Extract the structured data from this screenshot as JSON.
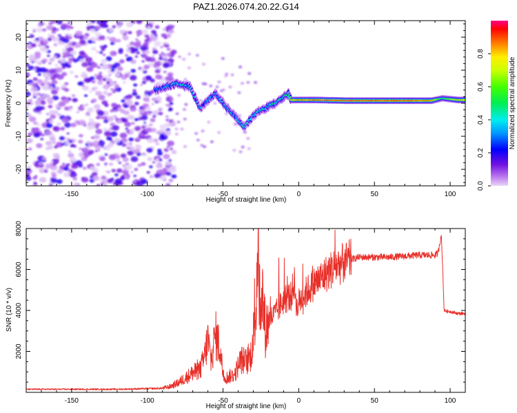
{
  "chart_data": [
    {
      "type": "heatmap",
      "title": "PAZ1.2026.074.20.22.G14",
      "xlabel": "Height of straight line (km)",
      "ylabel": "Frequency (Hz)",
      "xlim": [
        -180,
        110
      ],
      "ylim": [
        -25,
        25
      ],
      "x_ticks": [
        -150,
        -100,
        -50,
        0,
        50,
        100
      ],
      "y_ticks": [
        -20,
        -10,
        0,
        10,
        20
      ],
      "colorbar": {
        "label": "Normalized spectral amplitude",
        "range": [
          0,
          1
        ],
        "ticks": [
          0.0,
          0.2,
          0.4,
          0.6,
          0.8
        ],
        "tick_labels": [
          "0.0",
          "0.2",
          "0.4",
          "0.6",
          "0.8"
        ]
      },
      "noise_region_x": [
        -180,
        -88
      ],
      "ridge": [
        {
          "x": -95,
          "y": 4,
          "a": 0.3
        },
        {
          "x": -88,
          "y": 5,
          "a": 0.4
        },
        {
          "x": -80,
          "y": 6,
          "a": 0.45
        },
        {
          "x": -72,
          "y": 5,
          "a": 0.4
        },
        {
          "x": -65,
          "y": -1.5,
          "a": 0.35
        },
        {
          "x": -55,
          "y": 3,
          "a": 0.4
        },
        {
          "x": -48,
          "y": -1,
          "a": 0.4
        },
        {
          "x": -42,
          "y": -4,
          "a": 0.4
        },
        {
          "x": -36,
          "y": -7,
          "a": 0.45
        },
        {
          "x": -28,
          "y": -3,
          "a": 0.4
        },
        {
          "x": -20,
          "y": -1,
          "a": 0.45
        },
        {
          "x": -12,
          "y": 1,
          "a": 0.5
        },
        {
          "x": -7,
          "y": 3,
          "a": 0.45
        },
        {
          "x": -5,
          "y": 1,
          "a": 0.85
        },
        {
          "x": 10,
          "y": 1,
          "a": 0.95
        },
        {
          "x": 30,
          "y": 0.8,
          "a": 1.0
        },
        {
          "x": 50,
          "y": 0.8,
          "a": 0.95
        },
        {
          "x": 70,
          "y": 0.8,
          "a": 0.95
        },
        {
          "x": 88,
          "y": 0.8,
          "a": 0.9
        },
        {
          "x": 95,
          "y": 1.5,
          "a": 0.5
        },
        {
          "x": 105,
          "y": 1,
          "a": 0.85
        },
        {
          "x": 110,
          "y": 1,
          "a": 0.85
        }
      ]
    },
    {
      "type": "line",
      "title": "",
      "xlabel": "Height of straight line (km)",
      "ylabel": "SNR (10 * v/v)",
      "xlim": [
        -180,
        110
      ],
      "ylim": [
        0,
        8000
      ],
      "x_ticks": [
        -150,
        -100,
        -50,
        0,
        50,
        100
      ],
      "y_ticks": [
        2000,
        4000,
        6000,
        8000
      ],
      "series": [
        {
          "name": "SNR",
          "color": "#e8302a",
          "points": [
            [
              -180,
              150
            ],
            [
              -150,
              150
            ],
            [
              -120,
              150
            ],
            [
              -100,
              180
            ],
            [
              -90,
              200
            ],
            [
              -85,
              280
            ],
            [
              -80,
              450
            ],
            [
              -75,
              700
            ],
            [
              -70,
              950
            ],
            [
              -65,
              1100
            ],
            [
              -62,
              1800
            ],
            [
              -60,
              2600
            ],
            [
              -58,
              1500
            ],
            [
              -55,
              2800
            ],
            [
              -52,
              2200
            ],
            [
              -50,
              900
            ],
            [
              -48,
              700
            ],
            [
              -45,
              800
            ],
            [
              -42,
              900
            ],
            [
              -40,
              1300
            ],
            [
              -38,
              1600
            ],
            [
              -35,
              1500
            ],
            [
              -32,
              1700
            ],
            [
              -30,
              2700
            ],
            [
              -28,
              4500
            ],
            [
              -27,
              8200
            ],
            [
              -26,
              5000
            ],
            [
              -25,
              3200
            ],
            [
              -24,
              4800
            ],
            [
              -22,
              3000
            ],
            [
              -20,
              3500
            ],
            [
              -15,
              3900
            ],
            [
              -10,
              4500
            ],
            [
              -5,
              4700
            ],
            [
              -3,
              5400
            ],
            [
              -1,
              4000
            ],
            [
              0,
              4400
            ],
            [
              5,
              4900
            ],
            [
              10,
              5300
            ],
            [
              15,
              5600
            ],
            [
              20,
              5900
            ],
            [
              25,
              6200
            ],
            [
              30,
              6300
            ],
            [
              35,
              6500
            ],
            [
              40,
              6600
            ],
            [
              50,
              6600
            ],
            [
              60,
              6600
            ],
            [
              70,
              6650
            ],
            [
              80,
              6700
            ],
            [
              90,
              6700
            ],
            [
              92,
              6800
            ],
            [
              94,
              7700
            ],
            [
              95,
              6300
            ],
            [
              96,
              4000
            ],
            [
              98,
              3950
            ],
            [
              100,
              3950
            ],
            [
              105,
              3850
            ],
            [
              110,
              3850
            ]
          ]
        }
      ]
    }
  ]
}
